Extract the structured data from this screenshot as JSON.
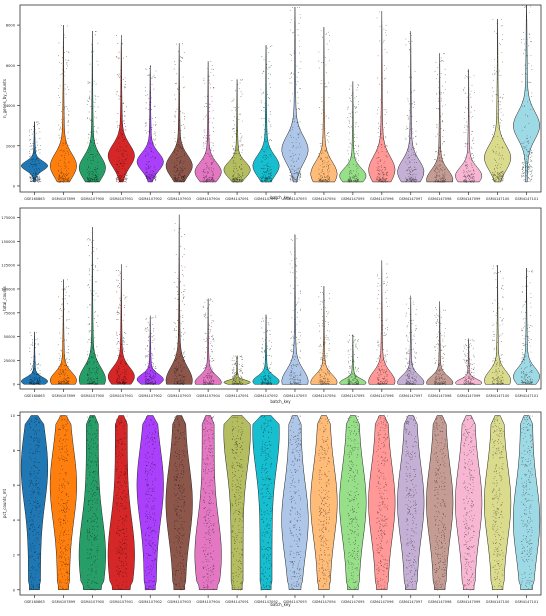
{
  "chart_data": [
    {
      "type": "violin",
      "xlabel": "batch_key",
      "ylabel": "n_genes_by_counts",
      "ylim": [
        -300,
        9000
      ],
      "yticks": [
        0,
        2000,
        4000,
        6000,
        8000
      ],
      "ytick_labels": [
        "0",
        "2000",
        "4000",
        "6000",
        "8000"
      ],
      "grid": false,
      "categories": [
        "GSE160863",
        "GSM4107899",
        "GSM4107900",
        "GSM4107901",
        "GSM4107902",
        "GSM4107903",
        "GSM4107904",
        "GSM4147091",
        "GSM4147092",
        "GSM4147093",
        "GSM4147094",
        "GSM4147095",
        "GSM4147096",
        "GSM4147097",
        "GSM4147098",
        "GSM4147099",
        "GSM4147100",
        "GSM4147101"
      ],
      "series": [
        {
          "min": 200,
          "max": 3200,
          "median": 1000
        },
        {
          "min": 200,
          "max": 8000,
          "median": 1000
        },
        {
          "min": 200,
          "max": 7700,
          "median": 900
        },
        {
          "min": 200,
          "max": 7500,
          "median": 1500
        },
        {
          "min": 200,
          "max": 6000,
          "median": 1200
        },
        {
          "min": 200,
          "max": 7100,
          "median": 1000
        },
        {
          "min": 200,
          "max": 6200,
          "median": 700
        },
        {
          "min": 200,
          "max": 5300,
          "median": 800
        },
        {
          "min": 200,
          "max": 7000,
          "median": 1000
        },
        {
          "min": 200,
          "max": 8900,
          "median": 1800
        },
        {
          "min": 200,
          "max": 7900,
          "median": 600
        },
        {
          "min": 200,
          "max": 5200,
          "median": 500
        },
        {
          "min": 200,
          "max": 8700,
          "median": 800
        },
        {
          "min": 200,
          "max": 7700,
          "median": 700
        },
        {
          "min": 200,
          "max": 6600,
          "median": 300
        },
        {
          "min": 200,
          "max": 5800,
          "median": 500
        },
        {
          "min": 200,
          "max": 8300,
          "median": 1400
        },
        {
          "min": 200,
          "max": 9000,
          "median": 3000
        }
      ]
    },
    {
      "type": "violin",
      "xlabel": "batch_key",
      "ylabel": "total_counts",
      "ylim": [
        -5000,
        185000
      ],
      "yticks": [
        0,
        25000,
        50000,
        75000,
        100000,
        125000,
        150000,
        175000
      ],
      "ytick_labels": [
        "0",
        "25000",
        "50000",
        "75000",
        "100000",
        "125000",
        "150000",
        "175000"
      ],
      "grid": false,
      "categories": [
        "GSE160863",
        "GSM4107899",
        "GSM4107900",
        "GSM4107901",
        "GSM4107902",
        "GSM4107903",
        "GSM4107904",
        "GSM4147091",
        "GSM4147092",
        "GSM4147093",
        "GSM4147094",
        "GSM4147095",
        "GSM4147096",
        "GSM4147097",
        "GSM4147098",
        "GSM4147099",
        "GSM4147100",
        "GSM4147101"
      ],
      "series": [
        {
          "min": 0,
          "max": 55000,
          "median": 3000
        },
        {
          "min": 0,
          "max": 110000,
          "median": 4000
        },
        {
          "min": 0,
          "max": 165000,
          "median": 5000
        },
        {
          "min": 0,
          "max": 126000,
          "median": 8000
        },
        {
          "min": 0,
          "max": 72000,
          "median": 5000
        },
        {
          "min": 0,
          "max": 178000,
          "median": 4000
        },
        {
          "min": 0,
          "max": 90000,
          "median": 2000
        },
        {
          "min": 0,
          "max": 30000,
          "median": 2000
        },
        {
          "min": 0,
          "max": 73000,
          "median": 3000
        },
        {
          "min": 0,
          "max": 157000,
          "median": 3000
        },
        {
          "min": 0,
          "max": 103000,
          "median": 2000
        },
        {
          "min": 0,
          "max": 52000,
          "median": 1500
        },
        {
          "min": 0,
          "max": 130000,
          "median": 3000
        },
        {
          "min": 0,
          "max": 93000,
          "median": 2000
        },
        {
          "min": 0,
          "max": 87000,
          "median": 1500
        },
        {
          "min": 0,
          "max": 48000,
          "median": 1500
        },
        {
          "min": 0,
          "max": 125000,
          "median": 4000
        },
        {
          "min": 0,
          "max": 122000,
          "median": 8000
        }
      ]
    },
    {
      "type": "violin",
      "xlabel": "batch_key",
      "ylabel": "pct_counts_mt",
      "ylim": [
        -0.3,
        10.2
      ],
      "yticks": [
        0,
        2,
        4,
        6,
        8,
        10
      ],
      "ytick_labels": [
        "0",
        "2",
        "4",
        "6",
        "8",
        "10"
      ],
      "grid": false,
      "categories": [
        "GSE160863",
        "GSM4107899",
        "GSM4107900",
        "GSM4107901",
        "GSM4107902",
        "GSM4107903",
        "GSM4107904",
        "GSM4147091",
        "GSM4147092",
        "GSM4147093",
        "GSM4147094",
        "GSM4147095",
        "GSM4147096",
        "GSM4147097",
        "GSM4147098",
        "GSM4147099",
        "GSM4147100",
        "GSM4147101"
      ],
      "series": [
        {
          "min": 0,
          "max": 10,
          "median": 7
        },
        {
          "min": 0,
          "max": 10,
          "median": 6
        },
        {
          "min": 0,
          "max": 10,
          "median": 2
        },
        {
          "min": 0,
          "max": 10,
          "median": 2
        },
        {
          "min": 0,
          "max": 10,
          "median": 6
        },
        {
          "min": 0,
          "max": 10,
          "median": 5
        },
        {
          "min": 0,
          "max": 10,
          "median": 2
        },
        {
          "min": 0,
          "max": 10,
          "median": 9
        },
        {
          "min": 0,
          "max": 10,
          "median": 9
        },
        {
          "min": 0,
          "max": 10,
          "median": 4
        },
        {
          "min": 0,
          "max": 10,
          "median": 5
        },
        {
          "min": 0,
          "max": 10,
          "median": 5
        },
        {
          "min": 0,
          "max": 10,
          "median": 5
        },
        {
          "min": 0,
          "max": 10,
          "median": 5
        },
        {
          "min": 0,
          "max": 10,
          "median": 5
        },
        {
          "min": 0,
          "max": 10,
          "median": 5
        },
        {
          "min": 0,
          "max": 10,
          "median": 5
        },
        {
          "min": 0,
          "max": 10,
          "median": 4
        }
      ]
    }
  ],
  "colors": [
    "#1f77b4",
    "#ff7f0e",
    "#279e68",
    "#d62728",
    "#aa40fc",
    "#8c564b",
    "#e377c2",
    "#b5bd61",
    "#17becf",
    "#aec7e8",
    "#ffbb78",
    "#98df8a",
    "#ff9896",
    "#c5b0d5",
    "#c49c94",
    "#f7b6d2",
    "#dbdb8d",
    "#9edae5"
  ]
}
